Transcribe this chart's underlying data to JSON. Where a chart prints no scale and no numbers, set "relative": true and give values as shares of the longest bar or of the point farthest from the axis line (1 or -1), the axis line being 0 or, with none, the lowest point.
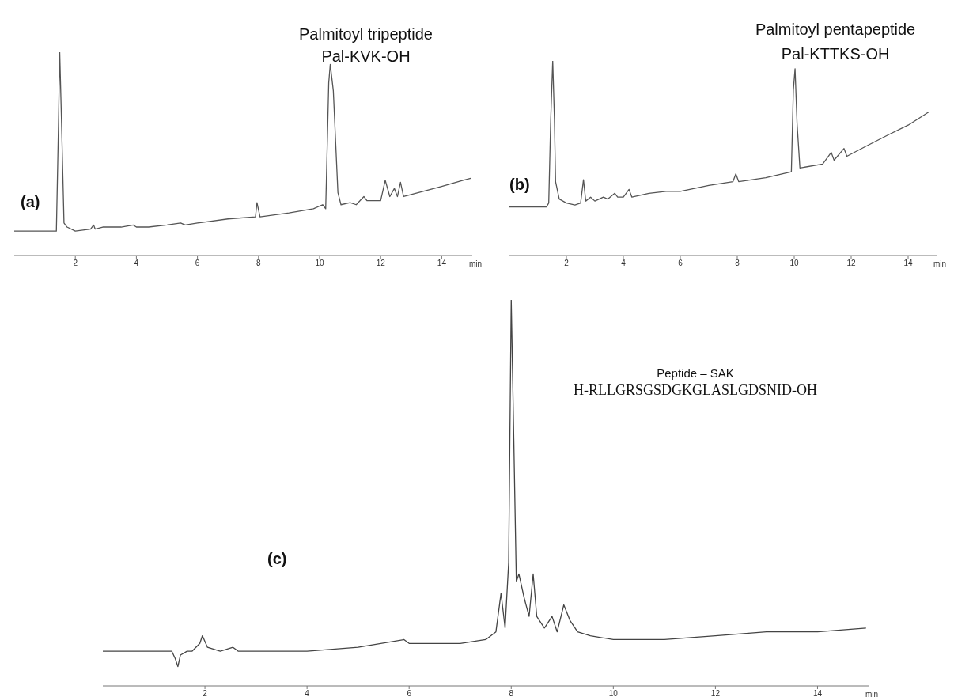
{
  "chart_data": [
    {
      "type": "line",
      "relative": true,
      "color": "#555555",
      "xlim": [
        0,
        15
      ],
      "xlabel": "min",
      "tick_labels": "x",
      "xticks": [
        2,
        4,
        6,
        8,
        10,
        12,
        14
      ],
      "x": [
        0,
        1.38,
        1.45,
        1.49,
        1.55,
        1.63,
        1.73,
        2.0,
        2.5,
        2.6,
        2.65,
        2.9,
        3.0,
        3.4,
        3.5,
        3.9,
        4.0,
        4.2,
        4.4,
        5.0,
        5.45,
        5.6,
        6.0,
        7.0,
        7.9,
        7.95,
        8.05,
        9.0,
        9.8,
        10.1,
        10.2,
        10.3,
        10.35,
        10.45,
        10.6,
        10.7,
        11.0,
        11.2,
        11.45,
        11.55,
        12.0,
        12.15,
        12.3,
        12.45,
        12.55,
        12.65,
        12.75,
        13.0,
        14.0,
        14.7,
        14.95
      ],
      "values": [
        0.12,
        0.12,
        0.65,
        1.0,
        0.65,
        0.16,
        0.14,
        0.12,
        0.13,
        0.15,
        0.13,
        0.14,
        0.14,
        0.14,
        0.14,
        0.15,
        0.14,
        0.14,
        0.14,
        0.15,
        0.16,
        0.15,
        0.16,
        0.18,
        0.19,
        0.26,
        0.19,
        0.21,
        0.23,
        0.25,
        0.23,
        0.85,
        0.94,
        0.81,
        0.31,
        0.25,
        0.26,
        0.25,
        0.29,
        0.27,
        0.27,
        0.37,
        0.29,
        0.33,
        0.29,
        0.36,
        0.29,
        0.3,
        0.34,
        0.37,
        0.38
      ],
      "annotations": [
        "(a)",
        {
          "text": "Palmitoyl tripeptide\nPal-KVK-OH",
          "x": 10.35,
          "y": 0.94
        }
      ]
    },
    {
      "type": "line",
      "relative": true,
      "color": "#555555",
      "xlim": [
        0,
        15
      ],
      "xlabel": "min",
      "tick_labels": "x",
      "xticks": [
        2,
        4,
        6,
        8,
        10,
        12,
        14
      ],
      "x": [
        0,
        1.3,
        1.38,
        1.45,
        1.52,
        1.58,
        1.62,
        1.75,
        2.0,
        2.3,
        2.5,
        2.6,
        2.68,
        2.85,
        3.0,
        3.3,
        3.45,
        3.7,
        3.8,
        4.0,
        4.2,
        4.3,
        4.9,
        5.5,
        6.0,
        7.0,
        7.85,
        7.95,
        8.05,
        9.0,
        9.9,
        9.97,
        10.03,
        10.1,
        10.2,
        11.0,
        11.3,
        11.4,
        11.75,
        11.85,
        12.5,
        13.3,
        14.0,
        14.75
      ],
      "values": [
        0.25,
        0.25,
        0.27,
        0.7,
        1.0,
        0.7,
        0.38,
        0.29,
        0.27,
        0.26,
        0.27,
        0.39,
        0.28,
        0.3,
        0.28,
        0.3,
        0.29,
        0.32,
        0.3,
        0.3,
        0.34,
        0.3,
        0.32,
        0.33,
        0.33,
        0.36,
        0.38,
        0.42,
        0.38,
        0.4,
        0.43,
        0.85,
        0.96,
        0.68,
        0.45,
        0.47,
        0.53,
        0.49,
        0.55,
        0.51,
        0.56,
        0.62,
        0.67,
        0.74
      ],
      "annotations": [
        "(b)",
        {
          "text": "Palmitoyl pentapeptide\nPal-KTTKS-OH",
          "x": 10.03,
          "y": 0.96
        }
      ]
    },
    {
      "type": "line",
      "relative": true,
      "color": "#444444",
      "xlim": [
        0,
        15
      ],
      "xlabel": "min",
      "tick_labels": "x",
      "xticks": [
        2,
        4,
        6,
        8,
        10,
        12,
        14
      ],
      "x": [
        0,
        1.3,
        1.35,
        1.42,
        1.47,
        1.52,
        1.65,
        1.75,
        1.9,
        1.95,
        2.05,
        2.3,
        2.55,
        2.65,
        3.0,
        3.3,
        4.0,
        5.0,
        5.9,
        6.0,
        6.5,
        7.0,
        7.5,
        7.7,
        7.8,
        7.88,
        7.95,
        8.0,
        8.05,
        8.1,
        8.15,
        8.25,
        8.35,
        8.43,
        8.5,
        8.65,
        8.8,
        8.9,
        9.03,
        9.15,
        9.3,
        9.55,
        10.0,
        11.0,
        12.0,
        13.0,
        14.0,
        14.95
      ],
      "values": [
        0.09,
        0.09,
        0.09,
        0.07,
        0.05,
        0.08,
        0.09,
        0.09,
        0.11,
        0.13,
        0.1,
        0.09,
        0.1,
        0.09,
        0.09,
        0.09,
        0.09,
        0.1,
        0.12,
        0.11,
        0.11,
        0.11,
        0.12,
        0.14,
        0.24,
        0.15,
        0.32,
        1.0,
        0.64,
        0.27,
        0.29,
        0.23,
        0.18,
        0.29,
        0.18,
        0.15,
        0.18,
        0.14,
        0.21,
        0.17,
        0.14,
        0.13,
        0.12,
        0.12,
        0.13,
        0.14,
        0.14,
        0.15
      ],
      "annotations": [
        "(c)",
        "Peptide – SAK\nH-RLLGRSGSDGKGLASLGDSNID-OH"
      ]
    }
  ]
}
